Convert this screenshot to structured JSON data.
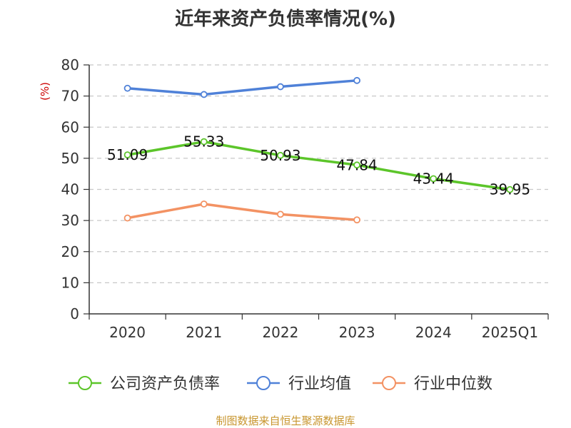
{
  "title": "近年来资产负债率情况(%)",
  "source": "制图数据来自恒生聚源数据库",
  "chart_data": {
    "type": "line",
    "title": "近年来资产负债率情况(%)",
    "ylabel": "(%)",
    "xlabel": "",
    "ylim": [
      0,
      80
    ],
    "yticks": [
      0,
      10,
      20,
      30,
      40,
      50,
      60,
      70,
      80
    ],
    "grid": true,
    "legend_position": "bottom",
    "categories": [
      "2020",
      "2021",
      "2022",
      "2023",
      "2024",
      "2025Q1"
    ],
    "series": [
      {
        "name": "公司资产负债率",
        "color": "#5cc52a",
        "values": [
          51.09,
          55.33,
          50.93,
          47.84,
          43.44,
          39.95
        ],
        "labeled": true
      },
      {
        "name": "行业均值",
        "color": "#4f81d8",
        "values": [
          72.5,
          70.5,
          73.0,
          75.0,
          null,
          null
        ],
        "labeled": false
      },
      {
        "name": "行业中位数",
        "color": "#f39263",
        "values": [
          30.8,
          35.3,
          32.0,
          30.2,
          null,
          null
        ],
        "labeled": false
      }
    ]
  }
}
